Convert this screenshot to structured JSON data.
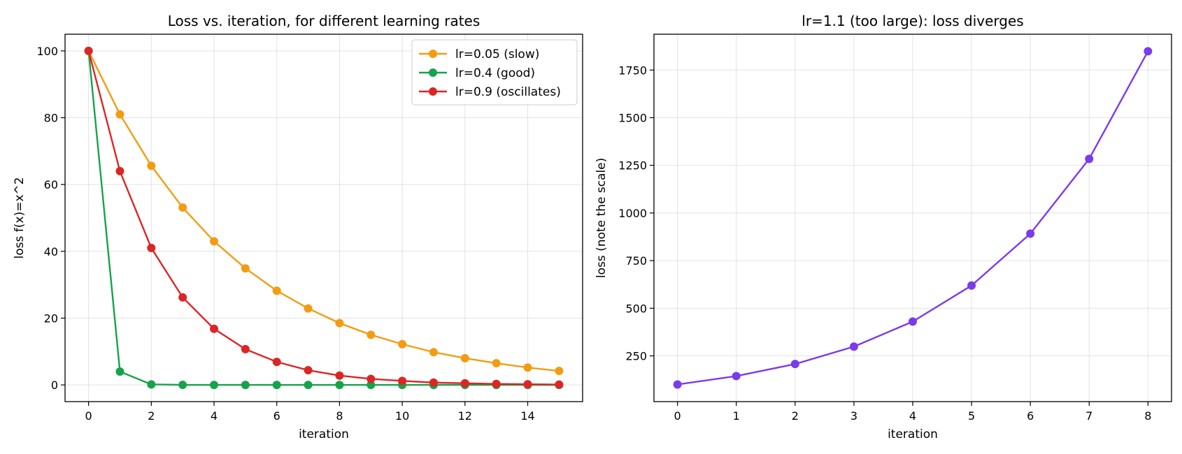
{
  "chart_data": [
    {
      "type": "line",
      "title": "Loss vs. iteration, for different learning rates",
      "xlabel": "iteration",
      "ylabel": "loss  f(x)=x^2",
      "xlim": [
        -0.75,
        15.75
      ],
      "ylim": [
        -5,
        105
      ],
      "xticks": [
        0,
        2,
        4,
        6,
        8,
        10,
        12,
        14
      ],
      "yticks": [
        0,
        20,
        40,
        60,
        80,
        100
      ],
      "grid": true,
      "legend_position": "top-right",
      "x": [
        0,
        1,
        2,
        3,
        4,
        5,
        6,
        7,
        8,
        9,
        10,
        11,
        12,
        13,
        14,
        15
      ],
      "series": [
        {
          "name": "lr=0.05 (slow)",
          "color": "#f39c12",
          "marker": "circle",
          "values": [
            100,
            81,
            65.6,
            53.1,
            43.0,
            34.9,
            28.2,
            22.9,
            18.5,
            15.0,
            12.2,
            9.8,
            8.0,
            6.5,
            5.2,
            4.2
          ]
        },
        {
          "name": "lr=0.4 (good)",
          "color": "#16a34a",
          "marker": "circle",
          "values": [
            100,
            4.0,
            0.16,
            0.0064,
            0.0003,
            0,
            0,
            0,
            0,
            0,
            0,
            0,
            0,
            0,
            0,
            0
          ]
        },
        {
          "name": "lr=0.9 (oscillates)",
          "color": "#dc2626",
          "marker": "circle",
          "values": [
            100,
            64.0,
            41.0,
            26.2,
            16.8,
            10.7,
            6.9,
            4.4,
            2.8,
            1.8,
            1.2,
            0.7,
            0.5,
            0.3,
            0.2,
            0.1
          ]
        }
      ]
    },
    {
      "type": "line",
      "title": "lr=1.1 (too large): loss diverges",
      "xlabel": "iteration",
      "ylabel": "loss (note the scale)",
      "xlim": [
        -0.4,
        8.4
      ],
      "ylim": [
        10,
        1938
      ],
      "xticks": [
        0,
        1,
        2,
        3,
        4,
        5,
        6,
        7,
        8
      ],
      "yticks": [
        250,
        500,
        750,
        1000,
        1250,
        1500,
        1750
      ],
      "grid": true,
      "x": [
        0,
        1,
        2,
        3,
        4,
        5,
        6,
        7,
        8
      ],
      "series": [
        {
          "name": "",
          "color": "#7c3aed",
          "marker": "circle",
          "values": [
            100,
            144,
            207.4,
            298.6,
            430,
            619.2,
            891.6,
            1283.9,
            1848.8
          ]
        }
      ]
    }
  ]
}
